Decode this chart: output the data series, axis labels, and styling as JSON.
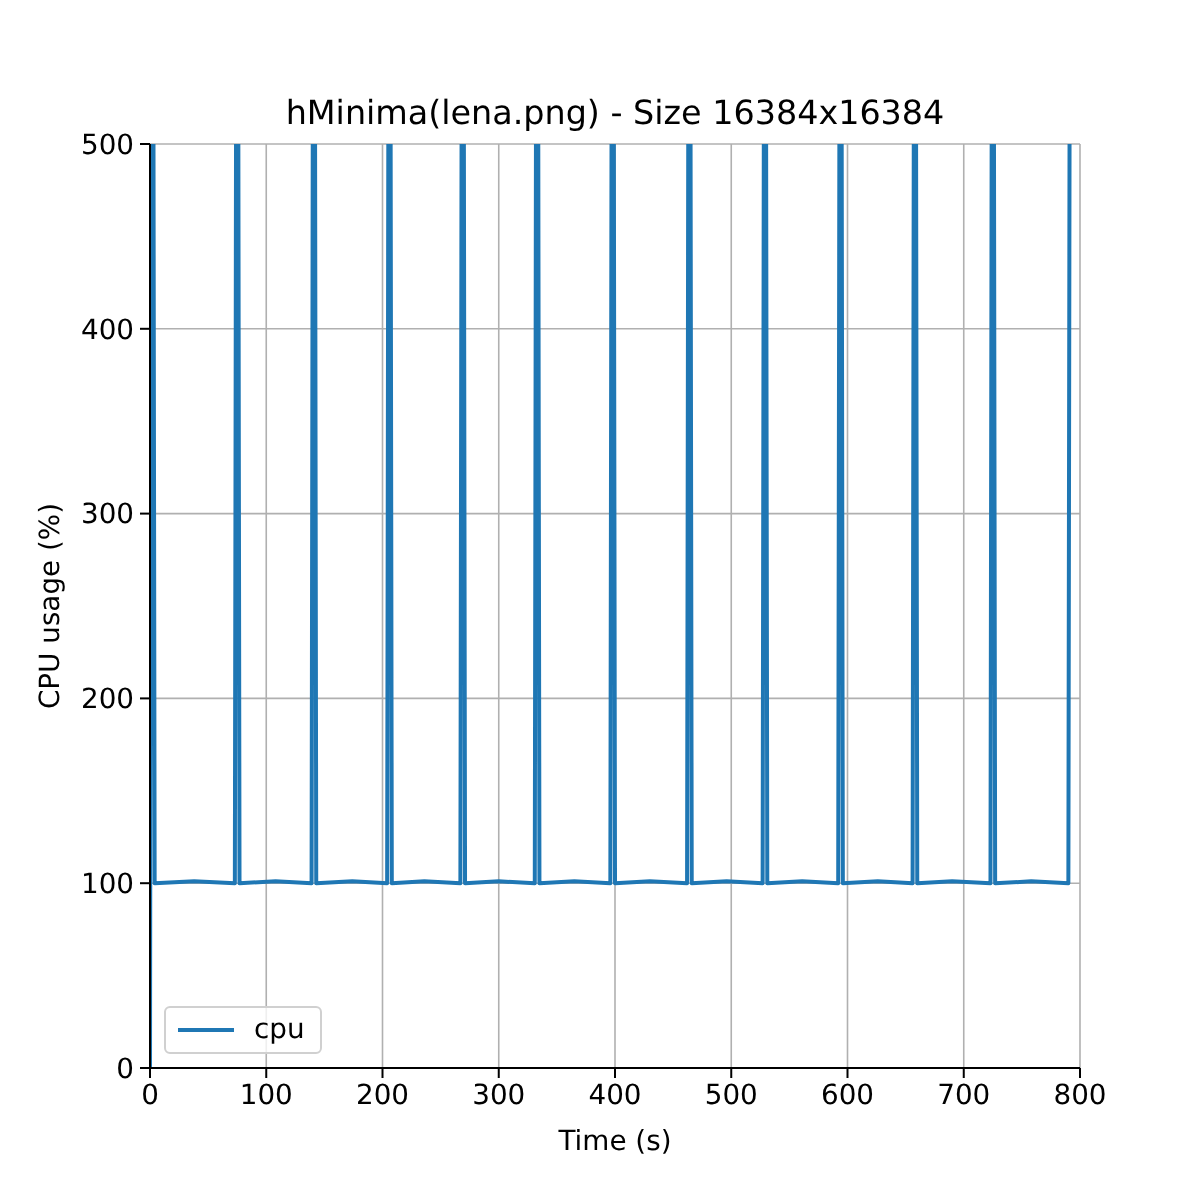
{
  "chart_data": {
    "type": "line",
    "title": "hMinima(lena.png) - Size 16384x16384",
    "xlabel": "Time (s)",
    "ylabel": "CPU usage (%)",
    "x": [
      0,
      1,
      3,
      4,
      38,
      73,
      74,
      76,
      77,
      108,
      139,
      140,
      142,
      143,
      174,
      204,
      205,
      207,
      208,
      236,
      267,
      268,
      270,
      271,
      300,
      331,
      332,
      334,
      335,
      365,
      396,
      397,
      399,
      400,
      430,
      462,
      463,
      465,
      466,
      496,
      527,
      528,
      530,
      531,
      561,
      592,
      593,
      595,
      596,
      626,
      656,
      657,
      659,
      660,
      690,
      723,
      724,
      726,
      727,
      758,
      790,
      791
    ],
    "series": [
      {
        "name": "cpu",
        "color": "#1f77b4",
        "values": [
          0,
          500,
          500,
          100,
          101,
          100,
          500,
          500,
          100,
          101,
          100,
          500,
          500,
          100,
          101,
          100,
          500,
          500,
          100,
          101,
          100,
          500,
          500,
          100,
          101,
          100,
          500,
          500,
          100,
          101,
          100,
          500,
          500,
          100,
          101,
          100,
          500,
          500,
          100,
          101,
          100,
          500,
          500,
          100,
          101,
          100,
          500,
          500,
          100,
          101,
          100,
          500,
          500,
          100,
          101,
          100,
          500,
          500,
          100,
          101,
          100,
          500
        ]
      }
    ],
    "xlim": [
      0,
      800
    ],
    "xticks": [
      0,
      100,
      200,
      300,
      400,
      500,
      600,
      700,
      800
    ],
    "ylim": [
      0,
      500
    ],
    "yticks": [
      0,
      100,
      200,
      300,
      400,
      500
    ],
    "grid": true,
    "legend": "bottom left"
  }
}
